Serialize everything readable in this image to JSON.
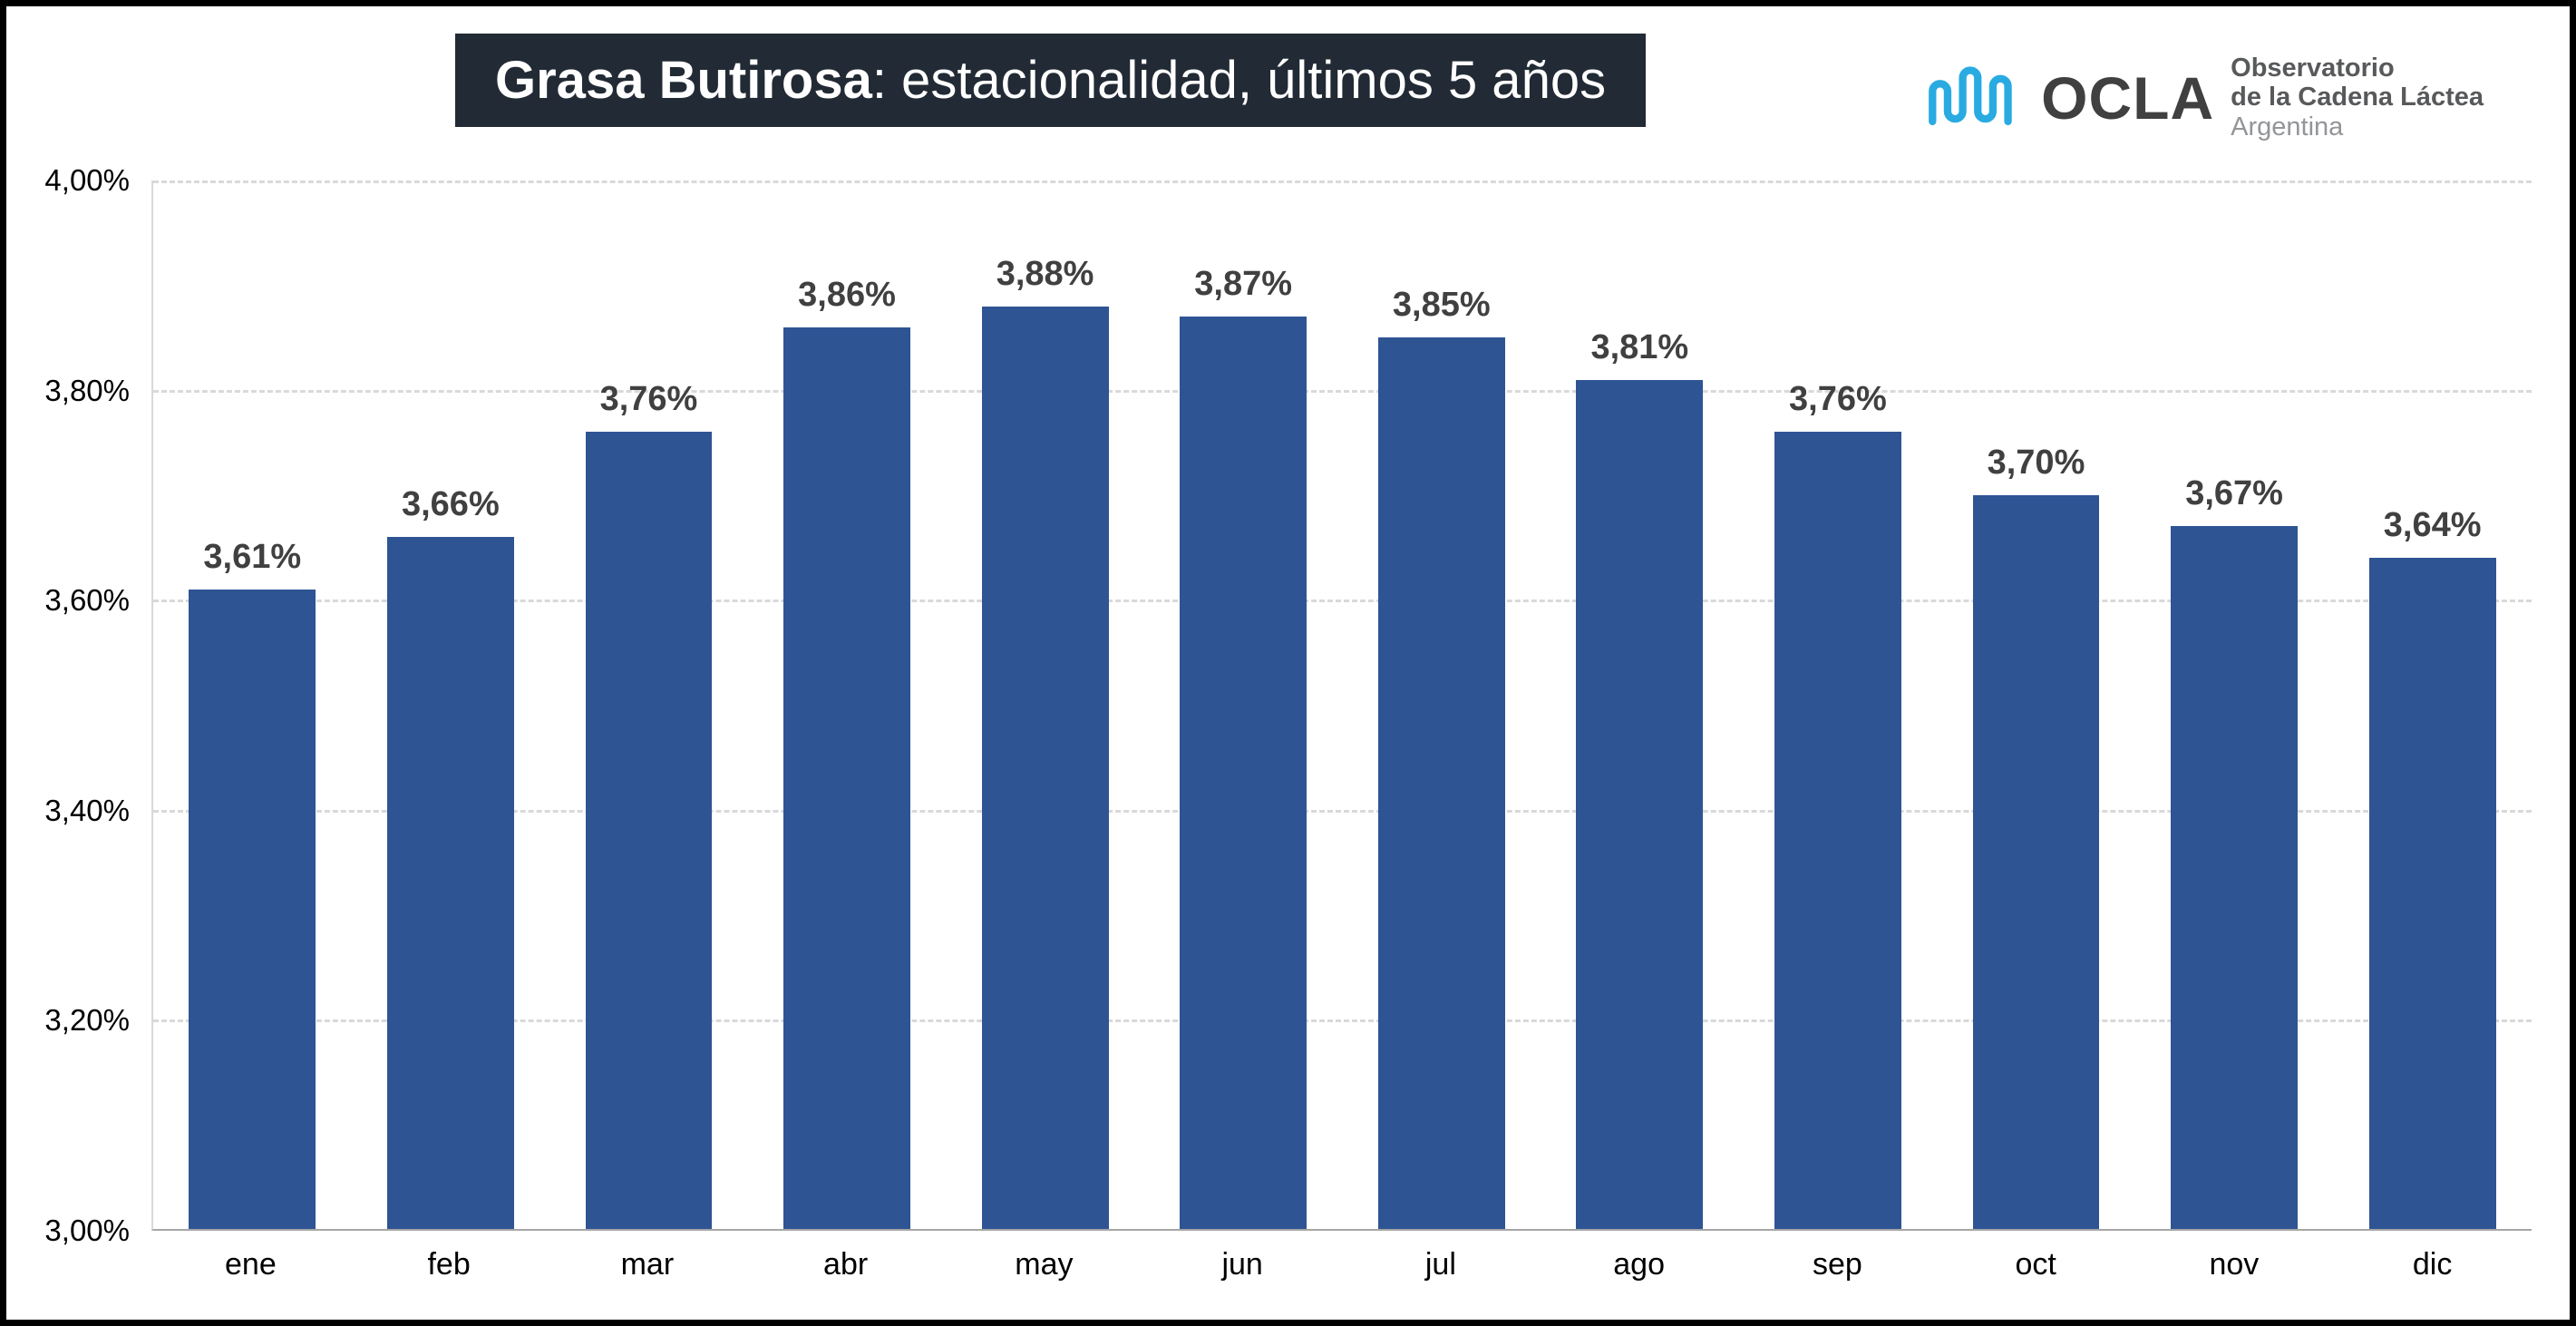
{
  "header": {
    "title_bold": "Grasa Butirosa",
    "title_rest": ": estacionalidad, últimos 5 años"
  },
  "logo": {
    "acronym": "OCLA",
    "line1": "Observatorio",
    "line2": "de la Cadena Láctea",
    "line3": "Argentina",
    "wave_color": "#29ABE2"
  },
  "chart_data": {
    "type": "bar",
    "title": "Grasa Butirosa: estacionalidad, últimos 5 años",
    "categories": [
      "ene",
      "feb",
      "mar",
      "abr",
      "may",
      "jun",
      "jul",
      "ago",
      "sep",
      "oct",
      "nov",
      "dic"
    ],
    "values": [
      3.61,
      3.66,
      3.76,
      3.86,
      3.88,
      3.87,
      3.85,
      3.81,
      3.76,
      3.7,
      3.67,
      3.64
    ],
    "value_labels": [
      "3,61%",
      "3,66%",
      "3,76%",
      "3,86%",
      "3,88%",
      "3,87%",
      "3,85%",
      "3,81%",
      "3,76%",
      "3,70%",
      "3,67%",
      "3,64%"
    ],
    "xlabel": "",
    "ylabel": "",
    "ylim": [
      3.0,
      4.0
    ],
    "yticks": [
      {
        "value": 3.0,
        "label": "3,00%"
      },
      {
        "value": 3.2,
        "label": "3,20%"
      },
      {
        "value": 3.4,
        "label": "3,40%"
      },
      {
        "value": 3.6,
        "label": "3,60%"
      },
      {
        "value": 3.8,
        "label": "3,80%"
      },
      {
        "value": 4.0,
        "label": "4,00%"
      }
    ],
    "bar_color": "#2E5494",
    "grid": true,
    "grid_style": "dashed",
    "legend": "none"
  }
}
